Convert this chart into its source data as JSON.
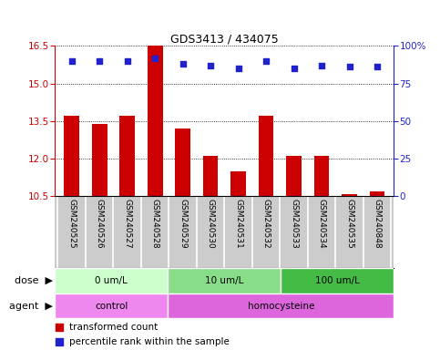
{
  "title": "GDS3413 / 434075",
  "samples": [
    "GSM240525",
    "GSM240526",
    "GSM240527",
    "GSM240528",
    "GSM240529",
    "GSM240530",
    "GSM240531",
    "GSM240532",
    "GSM240533",
    "GSM240534",
    "GSM240535",
    "GSM240848"
  ],
  "transformed_count": [
    13.7,
    13.4,
    13.7,
    16.5,
    13.2,
    12.1,
    11.5,
    13.7,
    12.1,
    12.1,
    10.6,
    10.7
  ],
  "percentile_rank": [
    90,
    90,
    90,
    92,
    88,
    87,
    85,
    90,
    85,
    87,
    86,
    86
  ],
  "ylim_left": [
    10.5,
    16.5
  ],
  "yticks_left": [
    10.5,
    12.0,
    13.5,
    15.0,
    16.5
  ],
  "ylim_right": [
    0,
    100
  ],
  "yticks_right": [
    0,
    25,
    50,
    75,
    100
  ],
  "ytick_right_labels": [
    "0",
    "25",
    "50",
    "75",
    "100%"
  ],
  "bar_color": "#cc0000",
  "dot_color": "#2222cc",
  "bar_width": 0.55,
  "dose_groups": [
    {
      "label": "0 um/L",
      "start": 0,
      "end": 3,
      "color": "#ccffcc"
    },
    {
      "label": "10 um/L",
      "start": 4,
      "end": 7,
      "color": "#88dd88"
    },
    {
      "label": "100 um/L",
      "start": 8,
      "end": 11,
      "color": "#44bb44"
    }
  ],
  "agent_groups": [
    {
      "label": "control",
      "start": 0,
      "end": 3,
      "color": "#ee88ee"
    },
    {
      "label": "homocysteine",
      "start": 4,
      "end": 11,
      "color": "#dd66dd"
    }
  ],
  "xlabel_dose": "dose",
  "xlabel_agent": "agent",
  "legend_bar": "transformed count",
  "legend_dot": "percentile rank within the sample",
  "tick_color_left": "#cc0000",
  "tick_color_right": "#2222cc",
  "bg_color": "#ffffff",
  "plot_bg": "#ffffff",
  "sample_bg": "#cccccc"
}
